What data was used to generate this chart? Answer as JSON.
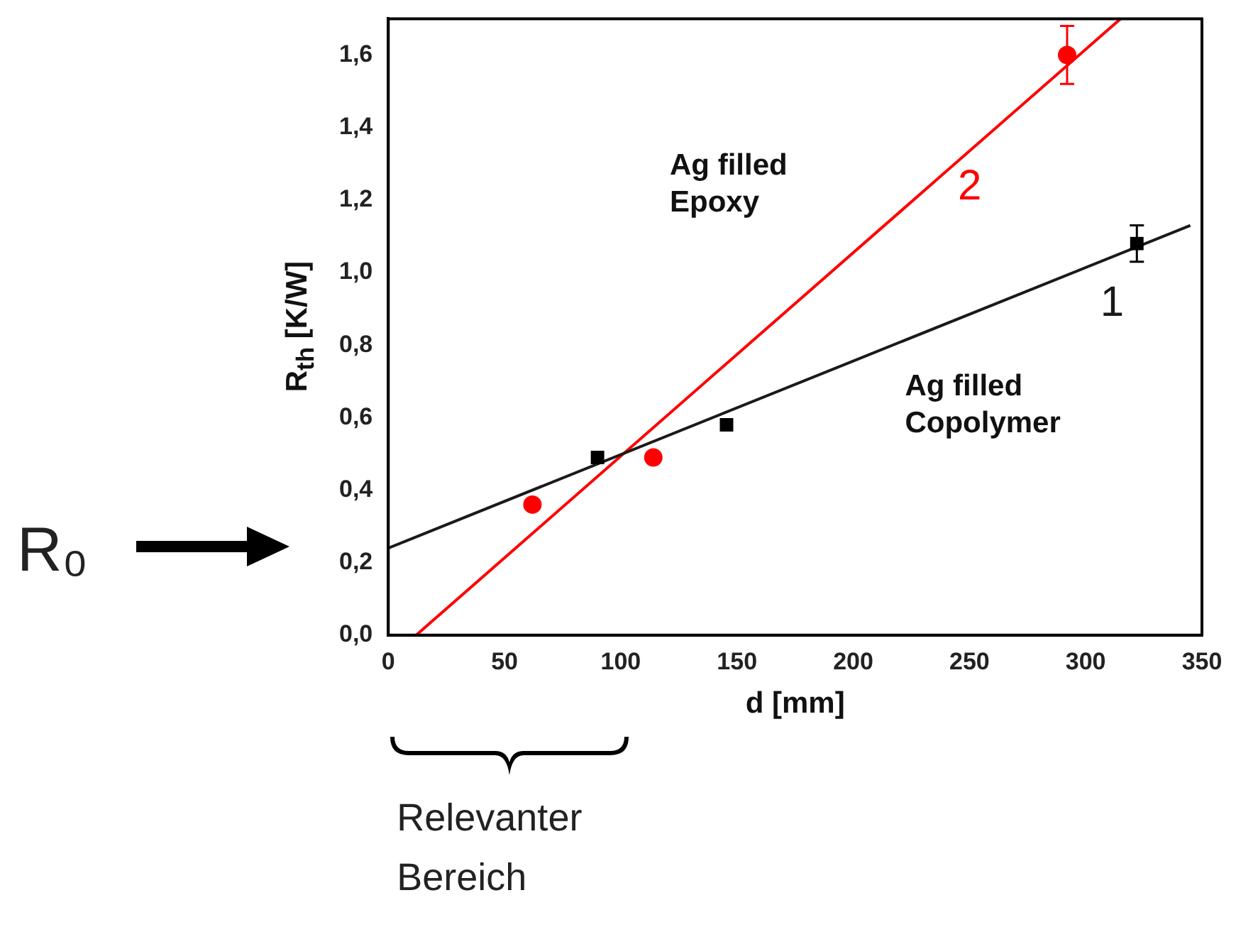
{
  "chart_data": {
    "type": "scatter",
    "xlabel": "d [mm]",
    "ylabel": "R$_{th}$ [K/W]",
    "xlim": [
      0,
      350
    ],
    "xticks": [
      0,
      50,
      100,
      150,
      200,
      250,
      300,
      350
    ],
    "ylim": [
      0,
      1.7
    ],
    "yticks": [
      {
        "value": 0,
        "label": "0,0"
      },
      {
        "value": 0.2,
        "label": "0,2"
      },
      {
        "value": 0.4,
        "label": "0,4"
      },
      {
        "value": 0.6,
        "label": "0,6"
      },
      {
        "value": 0.8,
        "label": "0,8"
      },
      {
        "value": 1.0,
        "label": "1,0"
      },
      {
        "value": 1.2,
        "label": "1,2"
      },
      {
        "value": 1.4,
        "label": "1,4"
      },
      {
        "value": 1.6,
        "label": "1,6"
      }
    ],
    "grid": false,
    "legend": false,
    "series": [
      {
        "color": "#000000",
        "marker": "square",
        "x": [
          90,
          145.5,
          322
        ],
        "values": [
          0.49,
          0.58,
          1.08
        ],
        "errors": [
          null,
          null,
          0.05
        ]
      },
      {
        "color": "#ff0000",
        "marker": "circle",
        "x": [
          62,
          114,
          292
        ],
        "values": [
          0.36,
          0.49,
          1.6
        ],
        "errors": [
          null,
          null,
          0.08
        ]
      },
      {
        "type": "line",
        "color": "#1a1a1a",
        "marker": "none",
        "line_style": "solid",
        "x": [
          0,
          345
        ],
        "values": [
          0.24,
          1.13
        ]
      },
      {
        "type": "line",
        "color": "#ff0000",
        "marker": "none",
        "line_style": "solid",
        "x": [
          12,
          315
        ],
        "values": [
          0,
          1.7
        ]
      }
    ],
    "annotations": [
      "Ag filled\nEpoxy",
      "2",
      "1",
      "Ag filled\nCopolymer",
      "R₀",
      "Relevanter\nBereich"
    ]
  }
}
